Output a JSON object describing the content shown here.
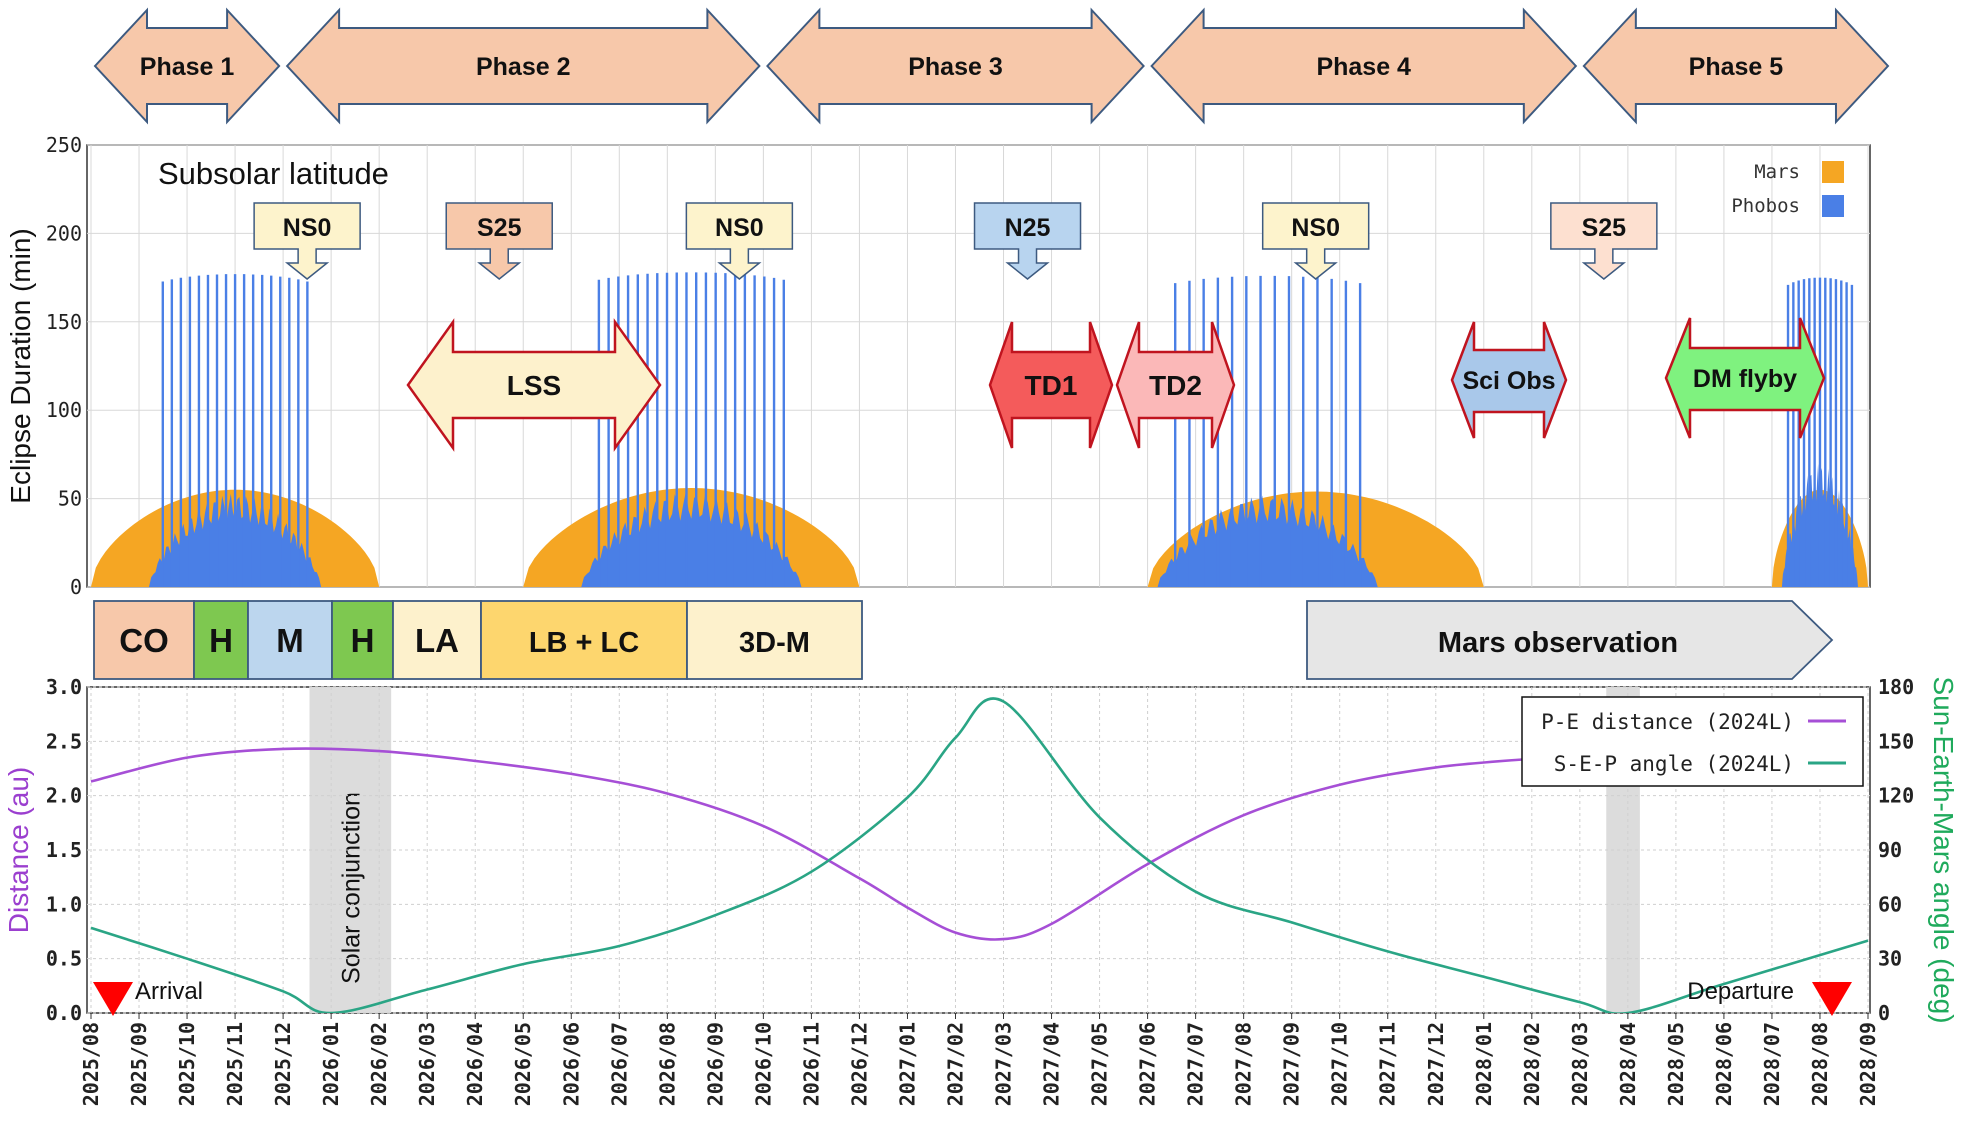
{
  "phases": [
    {
      "label": "Phase 1",
      "start": "2025-08",
      "end": "2025-12"
    },
    {
      "label": "Phase 2",
      "start": "2025-12",
      "end": "2026-10"
    },
    {
      "label": "Phase 3",
      "start": "2026-10",
      "end": "2027-06"
    },
    {
      "label": "Phase 4",
      "start": "2027-06",
      "end": "2028-03"
    },
    {
      "label": "Phase 5",
      "start": "2028-03",
      "end": "2028-08"
    }
  ],
  "chart_data": [
    {
      "type": "bar",
      "title": "",
      "panel_label": "Subsolar latitude",
      "ylabel": "Eclipse Duration (min)",
      "ylim": [
        0,
        250
      ],
      "yticks": [
        "0",
        "50",
        "100",
        "150",
        "200",
        "250"
      ],
      "grid": true,
      "legend_position": "top-right",
      "series": [
        {
          "name": "Mars",
          "color": "#f5a623",
          "episodes": [
            {
              "start": "2025-08",
              "end": "2026-02",
              "peak": 55
            },
            {
              "start": "2026-05",
              "end": "2026-12",
              "peak": 56
            },
            {
              "start": "2027-06",
              "end": "2028-01",
              "peak": 54
            },
            {
              "start": "2028-07",
              "end": "2028-09",
              "peak": 55
            }
          ]
        },
        {
          "name": "Phobos",
          "color": "#4a7fe6",
          "episodes": [
            {
              "start": "2025-09",
              "end": "2026-01",
              "base_peak": 53,
              "spike_max": 177,
              "spikes": 17
            },
            {
              "start": "2026-06",
              "end": "2026-11",
              "base_peak": 54,
              "spike_max": 178,
              "spikes": 20
            },
            {
              "start": "2027-06",
              "end": "2027-11",
              "base_peak": 52,
              "spike_max": 176,
              "spikes": 14
            },
            {
              "start": "2028-07",
              "end": "2028-09",
              "base_peak": 70,
              "spike_max": 175,
              "spikes": 13
            }
          ]
        }
      ],
      "latitude_callouts": [
        {
          "label": "NS0",
          "date": "2025-12",
          "color": "#fdf3cc"
        },
        {
          "label": "S25",
          "date": "2026-04",
          "color": "#f7c8aa"
        },
        {
          "label": "NS0",
          "date": "2026-09",
          "color": "#fdf3cc"
        },
        {
          "label": "N25",
          "date": "2027-03",
          "color": "#b8d4ef"
        },
        {
          "label": "NS0",
          "date": "2027-09",
          "color": "#fdf3cc"
        },
        {
          "label": "S25",
          "date": "2028-03",
          "color": "#fde0d0"
        }
      ],
      "operations": [
        {
          "label": "LSS",
          "start": "2026-02",
          "end": "2026-07",
          "color": "#fdf1cc"
        },
        {
          "label": "TD1",
          "start": "2027-02",
          "end": "2027-05",
          "color": "#f45b5b"
        },
        {
          "label": "TD2",
          "start": "2027-05",
          "end": "2027-07",
          "color": "#fbb8b8"
        },
        {
          "label": "Sci Obs",
          "start": "2028-01",
          "end": "2028-03",
          "color": "#a9c8ea"
        },
        {
          "label": "DM flyby",
          "start": "2028-06",
          "end": "2028-09",
          "color": "#7ff27f"
        }
      ]
    },
    {
      "type": "line",
      "title": "",
      "ylabel": "Distance (au)",
      "y2label": "Sun-Earth-Mars angle (deg)",
      "ylim": [
        0,
        3
      ],
      "y2lim": [
        0,
        180
      ],
      "yticks": [
        "0.0",
        "0.5",
        "1.0",
        "1.5",
        "2.0",
        "2.5",
        "3.0"
      ],
      "y2ticks": [
        "0",
        "30",
        "60",
        "90",
        "120",
        "150",
        "180"
      ],
      "xlim": [
        "2025-08",
        "2028-09"
      ],
      "xticks": [
        "2025/08",
        "2025/09",
        "2025/10",
        "2025/11",
        "2025/12",
        "2026/01",
        "2026/02",
        "2026/03",
        "2026/04",
        "2026/05",
        "2026/06",
        "2026/07",
        "2026/08",
        "2026/09",
        "2026/10",
        "2026/11",
        "2026/12",
        "2027/01",
        "2027/02",
        "2027/03",
        "2027/04",
        "2027/05",
        "2027/06",
        "2027/07",
        "2027/08",
        "2027/09",
        "2027/10",
        "2027/11",
        "2027/12",
        "2028/01",
        "2028/02",
        "2028/03",
        "2028/04",
        "2028/05",
        "2028/06",
        "2028/07",
        "2028/08",
        "2028/09"
      ],
      "grid": true,
      "legend_position": "top-right",
      "series": [
        {
          "name": "P-E distance (2024L)",
          "axis": "left",
          "color": "#a64fd6",
          "x": [
            "2025-08",
            "2025-10",
            "2025-12",
            "2026-02",
            "2026-04",
            "2026-06",
            "2026-08",
            "2026-10",
            "2026-12",
            "2027-01",
            "2027-02",
            "2027-03",
            "2027-04",
            "2027-06",
            "2027-08",
            "2027-10",
            "2027-12",
            "2028-02",
            "2028-03"
          ],
          "y": [
            2.13,
            2.35,
            2.43,
            2.41,
            2.32,
            2.2,
            2.02,
            1.72,
            1.24,
            0.97,
            0.74,
            0.68,
            0.82,
            1.37,
            1.82,
            2.1,
            2.26,
            2.34,
            2.37
          ]
        },
        {
          "name": "S-E-P angle (2024L)",
          "axis": "right",
          "color": "#2aa585",
          "x": [
            "2025-08",
            "2025-10",
            "2025-12",
            "2026-01",
            "2026-03",
            "2026-05",
            "2026-07",
            "2026-09",
            "2026-11",
            "2027-01",
            "2027-02",
            "2027-03",
            "2027-05",
            "2027-07",
            "2027-09",
            "2027-11",
            "2028-01",
            "2028-03",
            "2028-04",
            "2028-06",
            "2028-09"
          ],
          "y": [
            47,
            30,
            12,
            0,
            13,
            27,
            37,
            54,
            78,
            119,
            152,
            172,
            108,
            67,
            50,
            34,
            20,
            6,
            0,
            16,
            40
          ]
        }
      ],
      "shaded": [
        {
          "label": "Solar conjunction",
          "start": "2025-12",
          "end": "2026-02"
        },
        {
          "label": "",
          "start": "2028-03",
          "end": "2028-04"
        }
      ],
      "markers": [
        {
          "label": "Arrival",
          "date": "2025-08",
          "color": "#ff0000"
        },
        {
          "label": "Departure",
          "date": "2028-08",
          "color": "#ff0000"
        }
      ]
    }
  ],
  "mission_blocks": [
    {
      "label": "CO",
      "color": "#f7c8aa",
      "start": "2025-08",
      "end": "2025-10"
    },
    {
      "label": "H",
      "color": "#7ec850",
      "start": "2025-10",
      "end": "2025-11"
    },
    {
      "label": "M",
      "color": "#bcd6ee",
      "start": "2025-11",
      "end": "2025-12"
    },
    {
      "label": "H",
      "color": "#7ec850",
      "start": "2025-12",
      "end": "2026-01"
    },
    {
      "label": "LA",
      "color": "#fdf1cc",
      "start": "2026-01",
      "end": "2026-02"
    },
    {
      "label": "LB + LC",
      "color": "#fdd66e",
      "start": "2026-02",
      "end": "2026-06"
    },
    {
      "label": "3D-M",
      "color": "#fdf1cc",
      "start": "2026-06",
      "end": "2026-09"
    }
  ],
  "observation": {
    "label": "Mars observation",
    "start": "2027-06",
    "end": "2028-09",
    "color": "#e6e6e6"
  }
}
